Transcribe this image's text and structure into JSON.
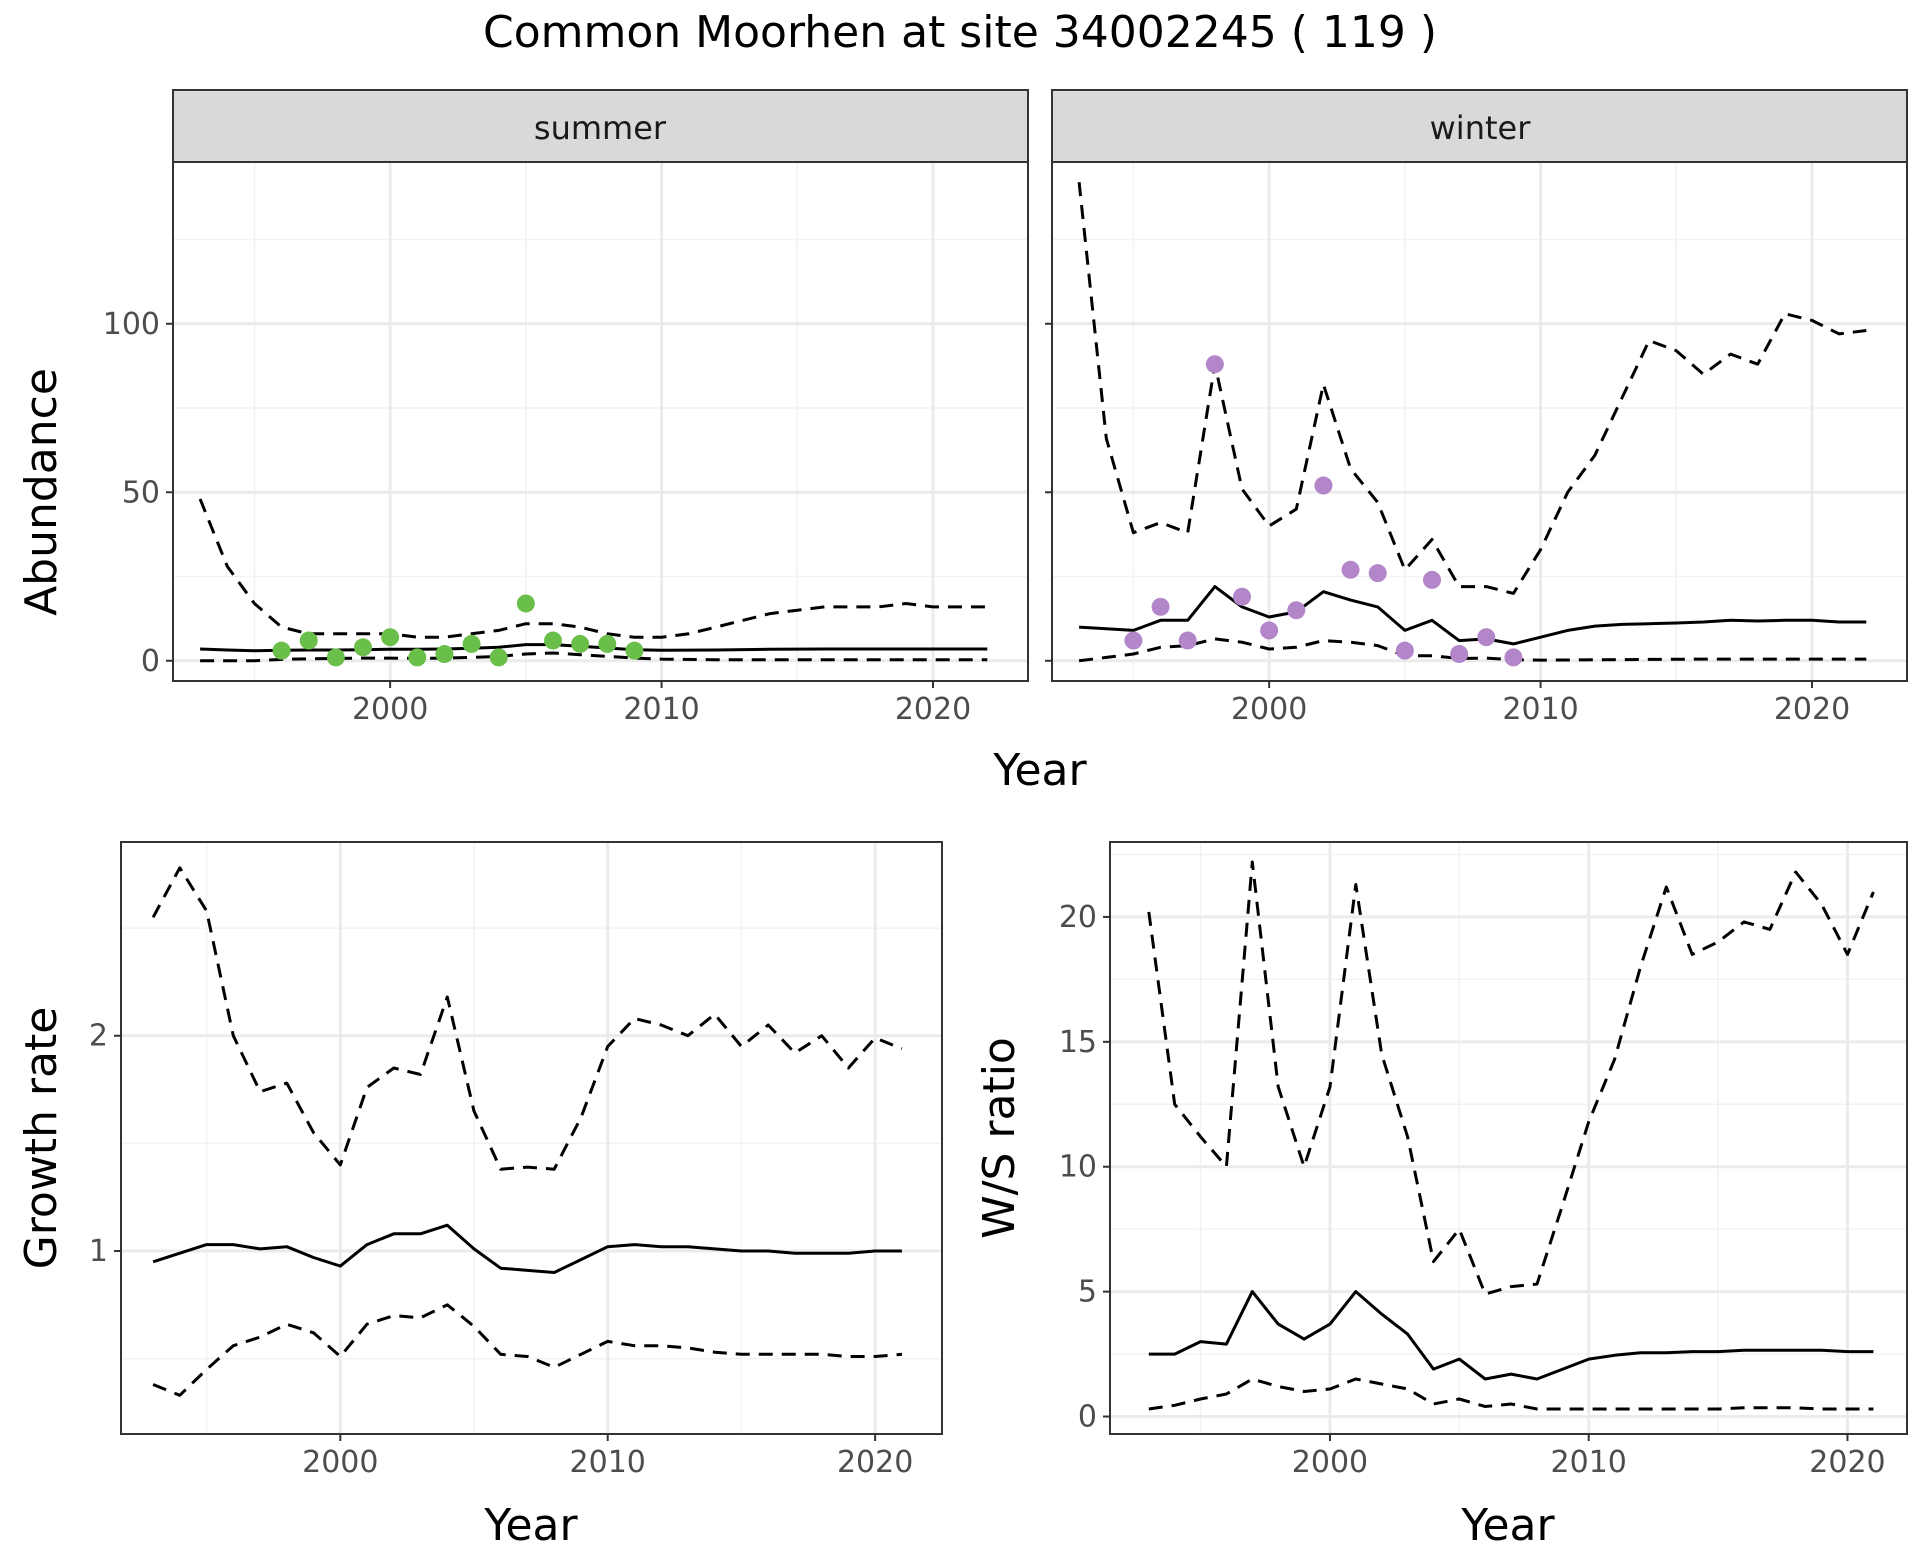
{
  "title": "Common Moorhen at site 34002245 ( 119 )",
  "colors": {
    "summer_points": "#6abf4b",
    "winter_points": "#b286c8",
    "lines": "#000000",
    "strip_bg": "#d9d9d9",
    "grid": "#ebebeb"
  },
  "chart_data": [
    {
      "type": "line",
      "facet": "summer",
      "xlabel": "Year",
      "ylabel": "Abundance",
      "xlim": [
        1992,
        2023.5
      ],
      "ylim": [
        -6,
        148
      ],
      "xticks": [
        2000,
        2010,
        2020
      ],
      "yticks": [
        0,
        50,
        100
      ],
      "grid": true,
      "series": [
        {
          "style": "solid",
          "x": [
            1993,
            1994,
            1995,
            1996,
            1997,
            1998,
            1999,
            2000,
            2001,
            2002,
            2003,
            2004,
            2005,
            2006,
            2007,
            2008,
            2009,
            2010,
            2012,
            2014,
            2016,
            2018,
            2020,
            2022
          ],
          "values": [
            3.5,
            3.2,
            3.0,
            3.1,
            3.2,
            3.2,
            3.3,
            3.4,
            3.4,
            3.5,
            3.7,
            4.0,
            4.8,
            4.8,
            4.3,
            3.8,
            3.3,
            3.1,
            3.2,
            3.4,
            3.5,
            3.5,
            3.5,
            3.5
          ]
        },
        {
          "style": "dashed",
          "x": [
            1993,
            1994,
            1995,
            1996,
            1997,
            1998,
            1999,
            2000,
            2001,
            2002,
            2003,
            2004,
            2005,
            2006,
            2007,
            2008,
            2009,
            2010,
            2011,
            2012,
            2013,
            2014,
            2015,
            2016,
            2017,
            2018,
            2019,
            2020,
            2021,
            2022
          ],
          "values": [
            48,
            28,
            17,
            10,
            8,
            8,
            8,
            8,
            7,
            7,
            8,
            9,
            11,
            11,
            10,
            8,
            7,
            7,
            8,
            10,
            12,
            14,
            15,
            16,
            16,
            16,
            17,
            16,
            16,
            16
          ]
        },
        {
          "style": "dashed",
          "x": [
            1993,
            1994,
            1995,
            1996,
            1997,
            1998,
            1999,
            2000,
            2001,
            2002,
            2003,
            2004,
            2005,
            2006,
            2007,
            2008,
            2009,
            2010,
            2012,
            2014,
            2016,
            2018,
            2020,
            2022
          ],
          "values": [
            0,
            0,
            0,
            0.4,
            0.6,
            0.7,
            0.8,
            0.8,
            0.7,
            0.8,
            1,
            1.3,
            2,
            2.3,
            1.8,
            1.3,
            0.8,
            0.5,
            0.3,
            0.3,
            0.3,
            0.3,
            0.3,
            0.3
          ]
        },
        {
          "style": "points",
          "x": [
            1996,
            1997,
            1998,
            1999,
            2000,
            2001,
            2002,
            2003,
            2004,
            2005,
            2006,
            2007,
            2008,
            2009
          ],
          "values": [
            3,
            6,
            1,
            4,
            7,
            1,
            2,
            5,
            1,
            17,
            6,
            5,
            5,
            3
          ]
        }
      ]
    },
    {
      "type": "line",
      "facet": "winter",
      "xlabel": "Year",
      "ylabel": "Abundance",
      "xlim": [
        1992,
        2023.5
      ],
      "ylim": [
        -6,
        148
      ],
      "xticks": [
        2000,
        2010,
        2020
      ],
      "yticks": [
        0,
        50,
        100
      ],
      "grid": true,
      "series": [
        {
          "style": "solid",
          "x": [
            1993,
            1994,
            1995,
            1996,
            1997,
            1998,
            1999,
            2000,
            2001,
            2002,
            2003,
            2004,
            2005,
            2006,
            2007,
            2008,
            2009,
            2010,
            2011,
            2012,
            2013,
            2014,
            2015,
            2016,
            2017,
            2018,
            2019,
            2020,
            2021,
            2022
          ],
          "values": [
            10,
            9.5,
            9,
            12,
            12,
            22,
            16,
            13,
            14.5,
            20.5,
            18,
            16,
            9,
            12,
            6,
            6.5,
            5,
            7,
            9,
            10.3,
            10.8,
            11,
            11.2,
            11.5,
            12,
            11.8,
            12,
            12,
            11.5,
            11.5
          ]
        },
        {
          "style": "dashed",
          "x": [
            1993,
            1994,
            1995,
            1996,
            1997,
            1998,
            1999,
            2000,
            2001,
            2002,
            2003,
            2004,
            2005,
            2006,
            2007,
            2008,
            2009,
            2010,
            2011,
            2012,
            2013,
            2014,
            2015,
            2016,
            2017,
            2018,
            2019,
            2020,
            2021,
            2022
          ],
          "values": [
            142,
            66,
            38,
            41,
            38,
            88,
            51,
            40,
            45,
            82,
            57,
            47,
            27,
            36,
            22,
            22,
            20,
            33,
            50,
            61,
            78,
            95,
            92,
            85,
            91,
            88,
            103,
            101,
            97,
            98
          ]
        },
        {
          "style": "dashed",
          "x": [
            1993,
            1994,
            1995,
            1996,
            1997,
            1998,
            1999,
            2000,
            2001,
            2002,
            2003,
            2004,
            2005,
            2006,
            2007,
            2008,
            2009,
            2010,
            2012,
            2014,
            2016,
            2018,
            2020,
            2022
          ],
          "values": [
            0,
            1,
            2,
            4,
            4.5,
            6.5,
            5.5,
            3.5,
            4,
            6,
            5.5,
            4.5,
            1.5,
            1.5,
            0.7,
            0.8,
            0.3,
            0.2,
            0.3,
            0.4,
            0.5,
            0.5,
            0.5,
            0.5
          ]
        },
        {
          "style": "points",
          "x": [
            1995,
            1996,
            1997,
            1998,
            1999,
            2000,
            2001,
            2002,
            2003,
            2004,
            2005,
            2006,
            2007,
            2008,
            2009
          ],
          "values": [
            6,
            16,
            6,
            88,
            19,
            9,
            15,
            52,
            27,
            26,
            3,
            24,
            2,
            7,
            1
          ]
        }
      ]
    },
    {
      "type": "line",
      "xlabel": "Year",
      "ylabel": "Growth rate",
      "xlim": [
        1991.8,
        2022.5
      ],
      "ylim": [
        0.15,
        2.9
      ],
      "xticks": [
        2000,
        2010,
        2020
      ],
      "yticks": [
        1,
        2
      ],
      "grid": true,
      "series": [
        {
          "style": "solid",
          "x": [
            1993,
            1994,
            1995,
            1996,
            1997,
            1998,
            1999,
            2000,
            2001,
            2002,
            2003,
            2004,
            2005,
            2006,
            2007,
            2008,
            2009,
            2010,
            2011,
            2012,
            2013,
            2014,
            2015,
            2016,
            2017,
            2018,
            2019,
            2020,
            2021
          ],
          "values": [
            0.95,
            0.99,
            1.03,
            1.03,
            1.01,
            1.02,
            0.97,
            0.93,
            1.03,
            1.08,
            1.08,
            1.12,
            1.01,
            0.92,
            0.91,
            0.9,
            0.96,
            1.02,
            1.03,
            1.02,
            1.02,
            1.01,
            1.0,
            1.0,
            0.99,
            0.99,
            0.99,
            1.0,
            1.0
          ]
        },
        {
          "style": "dashed",
          "x": [
            1993,
            1994,
            1995,
            1996,
            1997,
            1998,
            1999,
            2000,
            2001,
            2002,
            2003,
            2004,
            2005,
            2006,
            2007,
            2008,
            2009,
            2010,
            2011,
            2012,
            2013,
            2014,
            2015,
            2016,
            2017,
            2018,
            2019,
            2020,
            2021
          ],
          "values": [
            2.55,
            2.78,
            2.58,
            2.0,
            1.74,
            1.78,
            1.55,
            1.4,
            1.76,
            1.85,
            1.82,
            2.18,
            1.65,
            1.38,
            1.39,
            1.38,
            1.62,
            1.95,
            2.08,
            2.05,
            2.0,
            2.1,
            1.95,
            2.05,
            1.92,
            2.0,
            1.85,
            1.99,
            1.94
          ]
        },
        {
          "style": "dashed",
          "x": [
            1993,
            1994,
            1995,
            1996,
            1997,
            1998,
            1999,
            2000,
            2001,
            2002,
            2003,
            2004,
            2005,
            2006,
            2007,
            2008,
            2009,
            2010,
            2011,
            2012,
            2013,
            2014,
            2015,
            2016,
            2017,
            2018,
            2019,
            2020,
            2021
          ],
          "values": [
            0.38,
            0.33,
            0.45,
            0.56,
            0.6,
            0.66,
            0.62,
            0.51,
            0.66,
            0.7,
            0.69,
            0.75,
            0.65,
            0.52,
            0.51,
            0.46,
            0.52,
            0.58,
            0.56,
            0.56,
            0.55,
            0.53,
            0.52,
            0.52,
            0.52,
            0.52,
            0.51,
            0.51,
            0.52
          ]
        }
      ]
    },
    {
      "type": "line",
      "xlabel": "Year",
      "ylabel": "W/S ratio",
      "xlim": [
        1991.5,
        2022.3
      ],
      "ylim": [
        -0.7,
        23
      ],
      "xticks": [
        2000,
        2010,
        2020
      ],
      "yticks": [
        0,
        5,
        10,
        15,
        20
      ],
      "grid": true,
      "series": [
        {
          "style": "solid",
          "x": [
            1993,
            1994,
            1995,
            1996,
            1997,
            1998,
            1999,
            2000,
            2001,
            2002,
            2003,
            2004,
            2005,
            2006,
            2007,
            2008,
            2009,
            2010,
            2011,
            2012,
            2013,
            2014,
            2015,
            2016,
            2017,
            2018,
            2019,
            2020,
            2021
          ],
          "values": [
            2.5,
            2.5,
            3.0,
            2.9,
            5.0,
            3.7,
            3.1,
            3.7,
            5.0,
            4.1,
            3.3,
            1.9,
            2.3,
            1.5,
            1.7,
            1.5,
            1.9,
            2.3,
            2.45,
            2.55,
            2.55,
            2.6,
            2.6,
            2.65,
            2.65,
            2.65,
            2.65,
            2.6,
            2.6
          ]
        },
        {
          "style": "dashed",
          "x": [
            1993,
            1994,
            1995,
            1996,
            1997,
            1998,
            1999,
            2000,
            2001,
            2002,
            2003,
            2004,
            2005,
            2006,
            2007,
            2008,
            2009,
            2010,
            2011,
            2012,
            2013,
            2014,
            2015,
            2016,
            2017,
            2018,
            2019,
            2020,
            2021
          ],
          "values": [
            20.2,
            12.5,
            11.2,
            10.0,
            22.2,
            13.2,
            10.0,
            13.2,
            21.3,
            14.5,
            11.2,
            6.2,
            7.5,
            4.9,
            5.2,
            5.3,
            8.5,
            11.8,
            14.3,
            18.0,
            21.2,
            18.5,
            19.0,
            19.8,
            19.5,
            21.8,
            20.5,
            18.5,
            21.0
          ]
        },
        {
          "style": "dashed",
          "x": [
            1993,
            1994,
            1995,
            1996,
            1997,
            1998,
            1999,
            2000,
            2001,
            2002,
            2003,
            2004,
            2005,
            2006,
            2007,
            2008,
            2009,
            2010,
            2011,
            2012,
            2013,
            2014,
            2015,
            2016,
            2017,
            2018,
            2019,
            2020,
            2021
          ],
          "values": [
            0.3,
            0.45,
            0.7,
            0.9,
            1.5,
            1.2,
            1.0,
            1.1,
            1.5,
            1.3,
            1.1,
            0.5,
            0.7,
            0.4,
            0.5,
            0.3,
            0.3,
            0.3,
            0.3,
            0.3,
            0.3,
            0.3,
            0.3,
            0.35,
            0.35,
            0.35,
            0.3,
            0.3,
            0.3
          ]
        }
      ]
    }
  ],
  "facet_labels": [
    "summer",
    "winter"
  ]
}
